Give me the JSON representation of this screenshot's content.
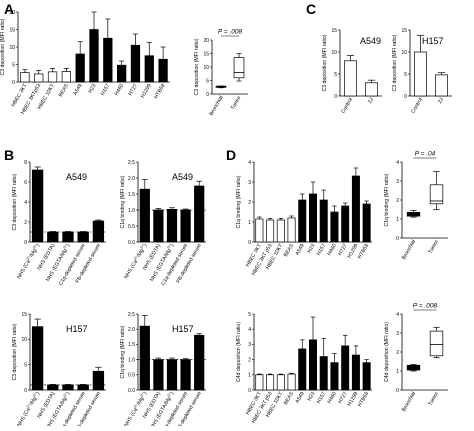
{
  "panels": [
    {
      "label": "A"
    },
    {
      "label": "B"
    },
    {
      "label": "C"
    },
    {
      "label": "D"
    }
  ],
  "chart_data": [
    {
      "id": "A1",
      "type": "bar",
      "panel": "A",
      "ylabel": "C3 deposition (MFI ratio)",
      "ylim": [
        0,
        20
      ],
      "yticks": [
        0,
        5,
        10,
        15,
        20
      ],
      "categories": [
        "HBEC 3KT",
        "HBEC 3KTp53",
        "HBEC 10KT",
        "BEAS",
        "A549",
        "H23",
        "H157",
        "H460",
        "H727",
        "H1299",
        "HTB58"
      ],
      "values": [
        2.7,
        2.3,
        2.9,
        3.0,
        8.0,
        15.0,
        12.5,
        4.8,
        10.5,
        7.5,
        6.5
      ],
      "errors": [
        0.8,
        1.0,
        1.0,
        0.9,
        3.5,
        5.0,
        5.5,
        1.2,
        3.2,
        3.8,
        3.5
      ],
      "fill": [
        "white",
        "white",
        "white",
        "white",
        "black",
        "black",
        "black",
        "black",
        "black",
        "black",
        "black"
      ]
    },
    {
      "id": "A2",
      "type": "box",
      "panel": "A",
      "ylabel": "C3 deposition (MFI ratio)",
      "ylim": [
        0,
        20
      ],
      "yticks": [
        0,
        5,
        10,
        15,
        20
      ],
      "categories": [
        "Bronchial",
        "Tumor"
      ],
      "boxes": [
        {
          "min": 2.3,
          "q1": 2.5,
          "median": 2.7,
          "q3": 2.9,
          "max": 3.0
        },
        {
          "min": 4.8,
          "q1": 6.0,
          "median": 8.0,
          "q3": 13.5,
          "max": 15.0
        }
      ],
      "annotation": "P = .008"
    },
    {
      "id": "C1",
      "type": "bar",
      "panel": "C",
      "title": "A549",
      "ylabel": "C3 deposition (MFI ratio)",
      "ylim": [
        0,
        15
      ],
      "yticks": [
        0,
        5,
        10,
        15
      ],
      "categories": [
        "Control",
        "2J"
      ],
      "values": [
        8.0,
        3.0
      ],
      "errors": [
        1.2,
        0.6
      ]
    },
    {
      "id": "C2",
      "type": "bar",
      "panel": "C",
      "title": "H157",
      "ylabel": "C3 deposition (MFI ratio)",
      "ylim": [
        0,
        15
      ],
      "yticks": [
        0,
        5,
        10,
        15
      ],
      "categories": [
        "Control",
        "2J"
      ],
      "values": [
        10.0,
        4.8
      ],
      "errors": [
        3.8,
        0.5
      ]
    },
    {
      "id": "B1",
      "type": "bar",
      "panel": "B",
      "title": "A549",
      "ylabel": "C3 deposition (MFI ratio)",
      "ylim": [
        0,
        8
      ],
      "yticks": [
        0,
        2,
        4,
        6,
        8
      ],
      "categories": [
        "NHS (Ca2+/Mg2+)",
        "NHS (EDTA)",
        "NHS (EGTA/Mg2+)",
        "C1q-depleted serum",
        "FB-depleted serum"
      ],
      "values": [
        7.2,
        1.0,
        1.0,
        1.0,
        2.1
      ],
      "errors": [
        0.3,
        0.05,
        0.05,
        0.05,
        0.1
      ],
      "dashed_line": 1
    },
    {
      "id": "B2",
      "type": "bar",
      "panel": "B",
      "title": "A549",
      "ylabel": "C1q binding (MFI ratio)",
      "ylim": [
        0.0,
        2.5
      ],
      "yticks": [
        0.0,
        0.5,
        1.0,
        1.5,
        2.0,
        2.5
      ],
      "categories": [
        "NHS (Ca2+/Mg2+)",
        "NHS (EDTA)",
        "NHS (EGTA/Mg2+)",
        "C1q-depleted serum",
        "FB-depleted serum"
      ],
      "values": [
        1.65,
        1.0,
        1.02,
        1.0,
        1.75
      ],
      "errors": [
        0.3,
        0.05,
        0.05,
        0.03,
        0.15
      ],
      "dashed_line": 1
    },
    {
      "id": "B3",
      "type": "bar",
      "panel": "B",
      "title": "H157",
      "ylabel": "C3 deposition (MFI ratio)",
      "ylim": [
        0,
        15
      ],
      "yticks": [
        0,
        5,
        10,
        15
      ],
      "categories": [
        "NHS (Ca2+/Mg2+)",
        "NHS (EDTA)",
        "NHS (EGTA/Mg2+)",
        "C1q-depleted serum",
        "FB-depleted serum"
      ],
      "values": [
        12.5,
        1.0,
        1.0,
        1.0,
        3.7
      ],
      "errors": [
        1.5,
        0.1,
        0.1,
        0.1,
        0.8
      ],
      "dashed_line": 1
    },
    {
      "id": "B4",
      "type": "bar",
      "panel": "B",
      "title": "H157",
      "ylabel": "C1q binding (MFI ratio)",
      "ylim": [
        0.0,
        2.5
      ],
      "yticks": [
        0.0,
        0.5,
        1.0,
        1.5,
        2.0,
        2.5
      ],
      "categories": [
        "NHS (Ca2+/Mg2+)",
        "NHS (EDTA)",
        "NHS (EGTA/Mg2+)",
        "C1q-depleted serum",
        "FB-depleted serum"
      ],
      "values": [
        2.1,
        1.0,
        1.0,
        1.0,
        1.8
      ],
      "errors": [
        0.35,
        0.05,
        0.05,
        0.03,
        0.05
      ],
      "dashed_line": 1
    },
    {
      "id": "D1",
      "type": "bar",
      "panel": "D",
      "ylabel": "C1q binding (MFI ratio)",
      "ylim": [
        0,
        4
      ],
      "yticks": [
        0,
        1,
        2,
        3,
        4
      ],
      "categories": [
        "HBEC 3KT",
        "HBEC 3KT p53",
        "HBEC 10KT",
        "BEAS",
        "A549",
        "H23",
        "H157",
        "H460",
        "H727",
        "H1299",
        "HTB58"
      ],
      "values": [
        1.15,
        1.1,
        1.1,
        1.2,
        2.1,
        2.4,
        2.1,
        1.5,
        1.8,
        3.3,
        1.9
      ],
      "errors": [
        0.1,
        0.08,
        0.08,
        0.1,
        0.3,
        0.6,
        0.5,
        0.3,
        0.15,
        0.4,
        0.15
      ],
      "fill": [
        "white",
        "white",
        "white",
        "white",
        "black",
        "black",
        "black",
        "black",
        "black",
        "black",
        "black"
      ]
    },
    {
      "id": "D2",
      "type": "box",
      "panel": "D",
      "ylabel": "C1q binding (MFI ratio)",
      "ylim": [
        0,
        4
      ],
      "yticks": [
        0,
        1,
        2,
        3,
        4
      ],
      "categories": [
        "Bronchial",
        "Tumor"
      ],
      "boxes": [
        {
          "min": 1.1,
          "q1": 1.15,
          "median": 1.2,
          "q3": 1.35,
          "max": 1.45
        },
        {
          "min": 1.5,
          "q1": 1.8,
          "median": 1.95,
          "q3": 2.8,
          "max": 3.5
        }
      ],
      "annotation": "P = .04"
    },
    {
      "id": "D3",
      "type": "bar",
      "panel": "D",
      "ylabel": "C4d deposition (MFI ratio)",
      "ylim": [
        0,
        5
      ],
      "yticks": [
        0,
        1,
        2,
        3,
        4,
        5
      ],
      "categories": [
        "HBEC 3KT",
        "HBEC 3KT p53",
        "HBEC 10KT",
        "BEAS",
        "A549",
        "H23",
        "H157",
        "H460",
        "H727",
        "H1299",
        "HTB58"
      ],
      "values": [
        1.0,
        1.0,
        1.0,
        1.05,
        2.7,
        3.3,
        2.2,
        1.8,
        2.9,
        2.3,
        1.8
      ],
      "errors": [
        0.05,
        0.05,
        0.05,
        0.05,
        0.6,
        1.5,
        1.2,
        0.6,
        0.7,
        0.6,
        0.2
      ],
      "fill": [
        "white",
        "white",
        "white",
        "white",
        "black",
        "black",
        "black",
        "black",
        "black",
        "black",
        "black"
      ]
    },
    {
      "id": "D4",
      "type": "box",
      "panel": "D",
      "ylabel": "C4d deposition (MFI ratio)",
      "ylim": [
        0,
        4
      ],
      "yticks": [
        0,
        1,
        2,
        3,
        4
      ],
      "categories": [
        "Bronchial",
        "Tumor"
      ],
      "boxes": [
        {
          "min": 1.0,
          "q1": 1.05,
          "median": 1.15,
          "q3": 1.3,
          "max": 1.35
        },
        {
          "min": 1.7,
          "q1": 1.8,
          "median": 2.4,
          "q3": 3.1,
          "max": 3.3
        }
      ],
      "annotation": "P = .008"
    }
  ]
}
